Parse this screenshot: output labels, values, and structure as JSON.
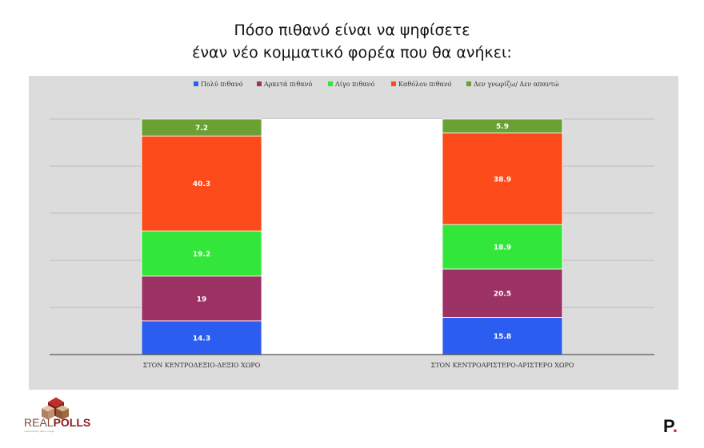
{
  "title_line1": "Πόσο πιθανό είναι να ψηφίσετε",
  "title_line2": "έναν νέο κομματικό φορέα που θα ανήκει:",
  "brand": {
    "real": "REAL",
    "polls": "POLLS",
    "tagline": "understanding data & insight",
    "right_logo": "P",
    "right_logo_dot": "."
  },
  "chart_data": {
    "type": "bar",
    "stacked": true,
    "categories": [
      "ΣΤΟΝ ΚΕΝΤΡΟΔΕΞΙΟ-ΔΕΞΙΟ ΧΩΡΟ",
      "ΣΤΟΝ ΚΕΝΤΡΟΑΡΙΣΤΕΡΟ-ΑΡΙΣΤΕΡΟ ΧΩΡΟ"
    ],
    "series": [
      {
        "name": "Πολύ πιθανό",
        "values": [
          14.3,
          15.8
        ],
        "color": "#2b5ef0"
      },
      {
        "name": "Αρκετά πιθανό",
        "values": [
          19,
          20.5
        ],
        "color": "#9c3163"
      },
      {
        "name": "Λίγο πιθανό",
        "values": [
          19.2,
          18.9
        ],
        "color": "#33e63a"
      },
      {
        "name": "Καθόλου πιθανό",
        "values": [
          40.3,
          38.9
        ],
        "color": "#fc4a1a"
      },
      {
        "name": "Δεν γνωρίζω/ Δεν απαντώ",
        "values": [
          7.2,
          5.9
        ],
        "color": "#6ba134"
      }
    ],
    "ylim": [
      0,
      100
    ],
    "grid": true,
    "legend_position": "top"
  }
}
